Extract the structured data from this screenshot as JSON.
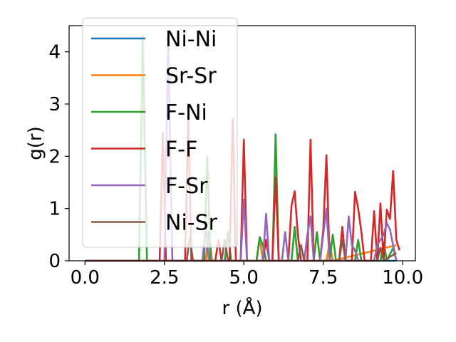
{
  "chart_data": {
    "type": "line",
    "xlabel": "r (Å)",
    "ylabel": "g(r)",
    "xlim": [
      -0.5,
      10.4
    ],
    "ylim": [
      0,
      4.5
    ],
    "xticks": [
      {
        "value": 0.0,
        "label": "0.0"
      },
      {
        "value": 2.5,
        "label": "2.5"
      },
      {
        "value": 5.0,
        "label": "5.0"
      },
      {
        "value": 7.5,
        "label": "7.5"
      },
      {
        "value": 10.0,
        "label": "10.0"
      }
    ],
    "yticks": [
      {
        "value": 0,
        "label": "0"
      },
      {
        "value": 1,
        "label": "1"
      },
      {
        "value": 2,
        "label": "2"
      },
      {
        "value": 3,
        "label": "3"
      },
      {
        "value": 4,
        "label": "4"
      }
    ],
    "grid": false,
    "legend_position": "upper-left",
    "series": [
      {
        "name": "Ni-Ni",
        "color": "#1f77b4",
        "points": [
          [
            0,
            0
          ],
          [
            3.8,
            0
          ],
          [
            3.9,
            0.55
          ],
          [
            4.0,
            0
          ],
          [
            5.4,
            0
          ],
          [
            5.5,
            0.45
          ],
          [
            5.6,
            0
          ],
          [
            7.6,
            0
          ],
          [
            7.7,
            0.3
          ],
          [
            7.8,
            0
          ],
          [
            9.8,
            0
          ]
        ]
      },
      {
        "name": "Sr-Sr",
        "color": "#ff7f0e",
        "points": [
          [
            0,
            0
          ],
          [
            3.8,
            0
          ],
          [
            3.9,
            0.4
          ],
          [
            4.0,
            0
          ],
          [
            5.4,
            0
          ],
          [
            5.5,
            0.45
          ],
          [
            5.6,
            0
          ],
          [
            7.6,
            0
          ],
          [
            7.7,
            0.35
          ],
          [
            7.8,
            0
          ],
          [
            9.8,
            0.3
          ]
        ]
      },
      {
        "name": "F-Ni",
        "color": "#2ca02c",
        "points": [
          [
            0,
            0
          ],
          [
            1.7,
            0
          ],
          [
            1.82,
            4.3
          ],
          [
            1.95,
            0
          ],
          [
            3.75,
            0
          ],
          [
            3.85,
            2.0
          ],
          [
            3.95,
            0
          ],
          [
            4.4,
            0
          ],
          [
            4.5,
            0.55
          ],
          [
            4.6,
            0
          ],
          [
            5.4,
            0
          ],
          [
            5.5,
            0.45
          ],
          [
            5.6,
            0.3
          ],
          [
            5.7,
            0
          ],
          [
            5.9,
            0
          ],
          [
            6.0,
            2.42
          ],
          [
            6.1,
            0
          ],
          [
            6.5,
            0
          ],
          [
            6.6,
            0.65
          ],
          [
            6.7,
            0
          ],
          [
            7.2,
            0
          ],
          [
            7.3,
            0.55
          ],
          [
            7.4,
            0
          ],
          [
            7.7,
            0
          ],
          [
            7.8,
            0.5
          ],
          [
            7.9,
            0
          ],
          [
            8.5,
            0
          ],
          [
            8.6,
            0.4
          ],
          [
            8.7,
            0
          ],
          [
            9.3,
            0
          ],
          [
            9.4,
            0.35
          ],
          [
            9.5,
            0
          ],
          [
            9.7,
            0.25
          ],
          [
            9.8,
            0
          ]
        ]
      },
      {
        "name": "F-F",
        "color": "#d62728",
        "points": [
          [
            0,
            0
          ],
          [
            2.35,
            0
          ],
          [
            2.45,
            2.45
          ],
          [
            2.55,
            0
          ],
          [
            3.15,
            0
          ],
          [
            3.25,
            2.75
          ],
          [
            3.35,
            0
          ],
          [
            4.1,
            0
          ],
          [
            4.2,
            0.4
          ],
          [
            4.3,
            0
          ],
          [
            4.55,
            0
          ],
          [
            4.65,
            2.72
          ],
          [
            4.75,
            0
          ],
          [
            4.9,
            0
          ],
          [
            5.0,
            2.32
          ],
          [
            5.1,
            0
          ],
          [
            5.6,
            0
          ],
          [
            5.7,
            0.4
          ],
          [
            5.8,
            0
          ],
          [
            5.9,
            0
          ],
          [
            6.0,
            1.6
          ],
          [
            6.1,
            0
          ],
          [
            6.4,
            0
          ],
          [
            6.5,
            1.05
          ],
          [
            6.6,
            1.33
          ],
          [
            6.7,
            0.5
          ],
          [
            6.8,
            0
          ],
          [
            7.0,
            0
          ],
          [
            7.1,
            2.32
          ],
          [
            7.2,
            0
          ],
          [
            7.4,
            0
          ],
          [
            7.5,
            0.6
          ],
          [
            7.6,
            2.02
          ],
          [
            7.7,
            0
          ],
          [
            8.0,
            0
          ],
          [
            8.1,
            0.65
          ],
          [
            8.2,
            0
          ],
          [
            8.4,
            0
          ],
          [
            8.5,
            1.32
          ],
          [
            8.6,
            1.0
          ],
          [
            8.7,
            0.55
          ],
          [
            8.8,
            0
          ],
          [
            9.0,
            0
          ],
          [
            9.1,
            0.95
          ],
          [
            9.2,
            0
          ],
          [
            9.3,
            1.1
          ],
          [
            9.4,
            0
          ],
          [
            9.5,
            0.98
          ],
          [
            9.6,
            0.8
          ],
          [
            9.7,
            1.72
          ],
          [
            9.8,
            0.4
          ],
          [
            9.9,
            0.2
          ]
        ]
      },
      {
        "name": "F-Sr",
        "color": "#9467bd",
        "points": [
          [
            0,
            0
          ],
          [
            2.5,
            0
          ],
          [
            2.62,
            4.28
          ],
          [
            2.75,
            0
          ],
          [
            3.7,
            0
          ],
          [
            3.8,
            0.7
          ],
          [
            3.9,
            0
          ],
          [
            4.9,
            0
          ],
          [
            5.0,
            1.17
          ],
          [
            5.1,
            0
          ],
          [
            5.6,
            0
          ],
          [
            5.7,
            0.9
          ],
          [
            5.8,
            0
          ],
          [
            6.2,
            0
          ],
          [
            6.3,
            0.55
          ],
          [
            6.4,
            0
          ],
          [
            6.9,
            0
          ],
          [
            7.0,
            0.5
          ],
          [
            7.1,
            0.85
          ],
          [
            7.2,
            0
          ],
          [
            7.4,
            0
          ],
          [
            7.5,
            0.5
          ],
          [
            7.6,
            1.0
          ],
          [
            7.7,
            0
          ],
          [
            8.2,
            0
          ],
          [
            8.3,
            0.85
          ],
          [
            8.4,
            0.3
          ],
          [
            8.5,
            0.2
          ],
          [
            8.6,
            0
          ],
          [
            9.1,
            0
          ],
          [
            9.2,
            0.3
          ],
          [
            9.4,
            0.5
          ],
          [
            9.5,
            0.72
          ],
          [
            9.6,
            0.6
          ],
          [
            9.7,
            0.3
          ],
          [
            9.8,
            0
          ]
        ]
      },
      {
        "name": "Ni-Sr",
        "color": "#8c564b",
        "points": [
          [
            0,
            0
          ],
          [
            3.2,
            0
          ],
          [
            3.3,
            0.45
          ],
          [
            3.4,
            0
          ],
          [
            4.3,
            0
          ],
          [
            4.4,
            0.4
          ],
          [
            4.5,
            0
          ],
          [
            6.7,
            0
          ],
          [
            6.8,
            0.3
          ],
          [
            6.9,
            0
          ],
          [
            8.0,
            0
          ],
          [
            8.1,
            0.4
          ],
          [
            8.2,
            0
          ],
          [
            9.2,
            0
          ],
          [
            9.3,
            0.25
          ],
          [
            9.4,
            0
          ],
          [
            9.8,
            0.15
          ]
        ]
      }
    ]
  }
}
